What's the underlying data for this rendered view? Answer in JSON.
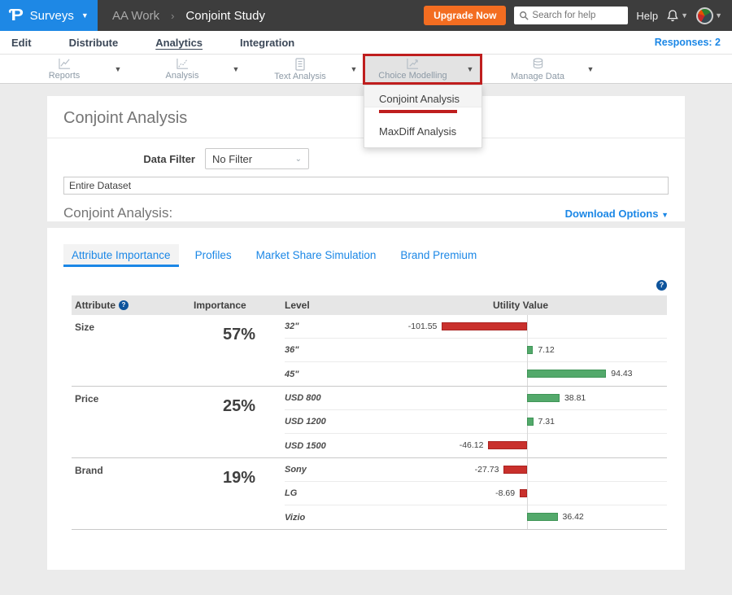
{
  "topbar": {
    "brand": "Surveys",
    "breadcrumb": {
      "parent": "AA Work",
      "separator": "›",
      "current": "Conjoint Study"
    },
    "upgrade_label": "Upgrade Now",
    "search_placeholder": "Search for help",
    "help_label": "Help"
  },
  "nav": {
    "items": [
      {
        "label": "Edit"
      },
      {
        "label": "Distribute"
      },
      {
        "label": "Analytics"
      },
      {
        "label": "Integration"
      }
    ],
    "active": "Analytics",
    "responses_label": "Responses: 2"
  },
  "toolbar": {
    "items": [
      {
        "label": "Reports",
        "icon": "line-chart-icon"
      },
      {
        "label": "Analysis",
        "icon": "trend-chart-icon"
      },
      {
        "label": "Text Analysis",
        "icon": "document-icon"
      },
      {
        "label": "Choice Modelling",
        "icon": "growth-chart-icon"
      },
      {
        "label": "Manage Data",
        "icon": "database-icon"
      }
    ],
    "active_item": "Choice Modelling"
  },
  "dropdown": {
    "items": [
      {
        "label": "Conjoint Analysis"
      },
      {
        "label": "MaxDiff Analysis"
      }
    ]
  },
  "annotations": {
    "highlighted_toolbar_item": "Choice Modelling",
    "underlined_menu_item": "Conjoint Analysis",
    "color": "#bf1e1e"
  },
  "main": {
    "title": "Conjoint Analysis",
    "data_filter_label": "Data Filter",
    "data_filter_value": "No Filter",
    "dataset_value": "Entire Dataset",
    "section_title": "Conjoint Analysis:",
    "download_label": "Download Options",
    "tabs": [
      {
        "label": "Attribute Importance"
      },
      {
        "label": "Profiles"
      },
      {
        "label": "Market Share Simulation"
      },
      {
        "label": "Brand Premium"
      }
    ],
    "active_tab": "Attribute Importance"
  },
  "chart_data": {
    "type": "bar",
    "orientation": "horizontal",
    "zero_centered_axis": true,
    "title": "Conjoint Analysis — Attribute Importance / Utility Values",
    "columns": [
      "Attribute",
      "Importance",
      "Level",
      "Utility Value"
    ],
    "sections": [
      {
        "attribute": "Size",
        "importance": "57%",
        "levels": [
          {
            "label": "32\"",
            "value": -101.55
          },
          {
            "label": "36\"",
            "value": 7.12
          },
          {
            "label": "45\"",
            "value": 94.43
          }
        ]
      },
      {
        "attribute": "Price",
        "importance": "25%",
        "levels": [
          {
            "label": "USD 800",
            "value": 38.81
          },
          {
            "label": "USD 1200",
            "value": 7.31
          },
          {
            "label": "USD 1500",
            "value": -46.12
          }
        ]
      },
      {
        "attribute": "Brand",
        "importance": "19%",
        "levels": [
          {
            "label": "Sony",
            "value": -27.73
          },
          {
            "label": "LG",
            "value": -8.69
          },
          {
            "label": "Vizio",
            "value": 36.42
          }
        ]
      }
    ],
    "colors": {
      "positive": "#53a96b",
      "positive_border": "#3f9557",
      "negative": "#c9302c",
      "negative_border": "#aa2220"
    }
  }
}
